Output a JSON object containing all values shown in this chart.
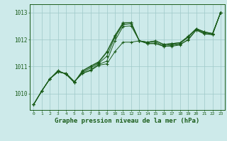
{
  "xlabel": "Graphe pression niveau de la mer (hPa)",
  "bg_color": "#cdeaea",
  "grid_color": "#9fc8c8",
  "line_color": "#1a5c1a",
  "marker_style": "+",
  "ylim": [
    1009.4,
    1013.3
  ],
  "xlim": [
    -0.5,
    23.5
  ],
  "yticks": [
    1010,
    1011,
    1012,
    1013
  ],
  "xticks": [
    0,
    1,
    2,
    3,
    4,
    5,
    6,
    7,
    8,
    9,
    10,
    11,
    12,
    13,
    14,
    15,
    16,
    17,
    18,
    19,
    20,
    21,
    22,
    23
  ],
  "series": [
    [
      1009.6,
      1010.1,
      1010.55,
      1010.8,
      1010.75,
      1010.45,
      1010.75,
      1010.85,
      1011.05,
      1011.1,
      1011.55,
      1011.9,
      1011.9,
      1011.95,
      1011.85,
      1011.85,
      1011.75,
      1011.75,
      1011.8,
      1012.0,
      1012.35,
      1012.2,
      1012.18,
      1013.0
    ],
    [
      1009.6,
      1010.1,
      1010.55,
      1010.8,
      1010.75,
      1010.45,
      1010.75,
      1010.88,
      1011.08,
      1011.2,
      1011.95,
      1012.48,
      1012.5,
      1011.95,
      1011.85,
      1011.85,
      1011.75,
      1011.78,
      1011.82,
      1011.98,
      1012.35,
      1012.22,
      1012.18,
      1013.0
    ],
    [
      1009.6,
      1010.1,
      1010.55,
      1010.82,
      1010.72,
      1010.42,
      1010.78,
      1010.95,
      1011.12,
      1011.38,
      1012.08,
      1012.55,
      1012.58,
      1011.95,
      1011.9,
      1011.9,
      1011.78,
      1011.82,
      1011.85,
      1012.08,
      1012.38,
      1012.25,
      1012.2,
      1013.0
    ],
    [
      1009.6,
      1010.1,
      1010.55,
      1010.85,
      1010.72,
      1010.42,
      1010.82,
      1011.0,
      1011.15,
      1011.52,
      1012.12,
      1012.6,
      1012.62,
      1011.95,
      1011.9,
      1011.95,
      1011.82,
      1011.85,
      1011.88,
      1012.1,
      1012.4,
      1012.28,
      1012.22,
      1013.0
    ],
    [
      1009.6,
      1010.1,
      1010.55,
      1010.85,
      1010.72,
      1010.42,
      1010.85,
      1011.02,
      1011.18,
      1011.55,
      1012.15,
      1012.62,
      1012.62,
      1011.95,
      1011.9,
      1011.95,
      1011.82,
      1011.85,
      1011.88,
      1012.12,
      1012.4,
      1012.28,
      1012.22,
      1013.0
    ]
  ]
}
